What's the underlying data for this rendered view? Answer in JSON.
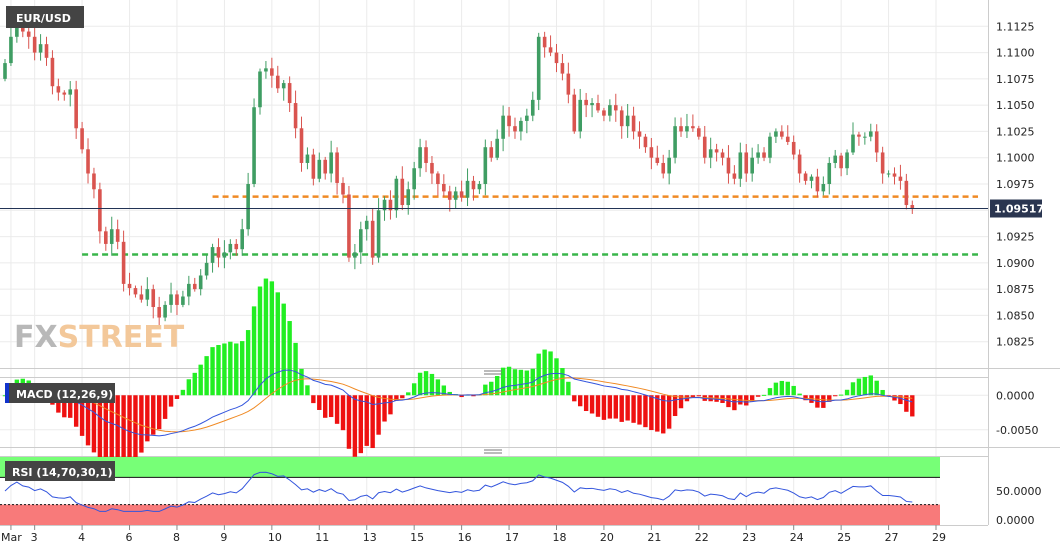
{
  "symbol": "EUR/USD",
  "watermark": {
    "left": "FX",
    "right": "STREET"
  },
  "colors": {
    "up": "#3f9d63",
    "down": "#d9544f",
    "resistance": "#f08a24",
    "support": "#39b54a",
    "macd_line": "#3355dd",
    "signal_line": "#f08a24",
    "hist_pos": "#22ee22",
    "hist_neg": "#ee1111",
    "rsi_line": "#3355dd",
    "rsi_overbought_band": "#77ff77",
    "rsi_oversold_band": "#f87a7a"
  },
  "chart_data": [
    {
      "type": "candlestick",
      "title": "EUR/USD",
      "ylim": [
        1.08,
        1.115
      ],
      "y_ticks": [
        1.0825,
        1.085,
        1.0875,
        1.09,
        1.0925,
        1.095,
        1.0975,
        1.1,
        1.1025,
        1.105,
        1.1075,
        1.11,
        1.1125
      ],
      "y_tick_labels": [
        "1.0825",
        "1.0850",
        "1.0875",
        "1.0900",
        "1.0925",
        "",
        "1.0975",
        "1.1000",
        "1.1025",
        "1.1050",
        "1.1075",
        "1.1100",
        "1.1125"
      ],
      "x_ticks": [
        {
          "i": 1,
          "label": "Mar"
        },
        {
          "i": 5,
          "label": "3"
        },
        {
          "i": 13,
          "label": "4"
        },
        {
          "i": 21,
          "label": "6"
        },
        {
          "i": 29,
          "label": "8"
        },
        {
          "i": 37,
          "label": "9"
        },
        {
          "i": 45,
          "label": "10"
        },
        {
          "i": 53,
          "label": "11"
        },
        {
          "i": 61,
          "label": "13"
        },
        {
          "i": 69,
          "label": "15"
        },
        {
          "i": 77,
          "label": "16"
        },
        {
          "i": 85,
          "label": "17"
        },
        {
          "i": 93,
          "label": "18"
        },
        {
          "i": 101,
          "label": "20"
        },
        {
          "i": 109,
          "label": "21"
        },
        {
          "i": 117,
          "label": "22"
        },
        {
          "i": 125,
          "label": "23"
        },
        {
          "i": 133,
          "label": "24"
        },
        {
          "i": 141,
          "label": "25"
        },
        {
          "i": 149,
          "label": "27"
        },
        {
          "i": 157,
          "label": "29"
        }
      ],
      "current_price": 1.09517,
      "current_price_label": "1.09517",
      "horizontal_levels": [
        {
          "price": 1.0963,
          "color": "#f08a24",
          "from_index": 35
        },
        {
          "price": 1.0908,
          "color": "#39b54a",
          "from_index": 13
        }
      ],
      "closes": [
        1.109,
        1.1115,
        1.1135,
        1.112,
        1.1115,
        1.11,
        1.1108,
        1.1095,
        1.1068,
        1.1062,
        1.106,
        1.1065,
        1.1028,
        1.1008,
        1.0985,
        1.097,
        1.093,
        1.0918,
        1.0932,
        1.092,
        1.088,
        1.0876,
        1.087,
        1.0865,
        1.0875,
        1.0858,
        1.0848,
        1.086,
        1.087,
        1.086,
        1.0868,
        1.088,
        1.0875,
        1.0888,
        1.09,
        1.0915,
        1.0905,
        1.091,
        1.0918,
        1.0913,
        1.0932,
        1.0975,
        1.1048,
        1.1082,
        1.1085,
        1.1078,
        1.1066,
        1.1071,
        1.1052,
        1.1028,
        1.0995,
        1.1003,
        1.098,
        1.0998,
        1.0985,
        1.1005,
        1.0976,
        1.0965,
        1.0905,
        1.091,
        1.0932,
        1.094,
        1.0905,
        1.095,
        1.096,
        1.095,
        1.098,
        1.0955,
        1.097,
        1.099,
        1.101,
        1.0995,
        1.0985,
        1.0975,
        1.0968,
        1.096,
        1.0968,
        1.0962,
        1.0978,
        1.097,
        1.0975,
        1.101,
        1.1,
        1.1018,
        1.104,
        1.103,
        1.1025,
        1.1035,
        1.104,
        1.1055,
        1.1115,
        1.1105,
        1.11,
        1.109,
        1.108,
        1.106,
        1.1025,
        1.1055,
        1.105,
        1.1052,
        1.1045,
        1.104,
        1.105,
        1.1045,
        1.103,
        1.104,
        1.1025,
        1.102,
        1.101,
        1.1,
        1.0995,
        1.0985,
        1.1,
        1.103,
        1.1025,
        1.103,
        1.1028,
        1.102,
        1.1,
        1.1008,
        1.1005,
        1.1,
        1.0985,
        1.098,
        1.1005,
        1.0985,
        1.1,
        1.1005,
        1.1,
        1.102,
        1.1025,
        1.102,
        1.1015,
        1.1003,
        1.0985,
        1.0978,
        1.0982,
        1.0968,
        1.0975,
        1.0995,
        1.1002,
        1.099,
        1.1005,
        1.1022,
        1.102,
        1.102,
        1.1025,
        1.1005,
        1.0985,
        1.0985,
        1.0982,
        1.0978,
        1.0955,
        1.0952
      ]
    },
    {
      "type": "line",
      "title": "MACD (12,26,9)",
      "ylim": [
        -0.0075,
        0.0025
      ],
      "y_ticks": [
        -0.005,
        0.0
      ],
      "y_tick_labels": [
        "-0.0050",
        "0.0000"
      ],
      "series": [
        {
          "role": "macd"
        },
        {
          "role": "signal"
        },
        {
          "role": "histogram"
        }
      ]
    },
    {
      "type": "line",
      "title": "RSI (14,70,30,1)",
      "ylim": [
        0,
        100
      ],
      "y_ticks": [
        0,
        50
      ],
      "y_tick_labels": [
        "0.0000",
        "50.0000"
      ],
      "overbought": 70,
      "oversold": 30
    }
  ]
}
